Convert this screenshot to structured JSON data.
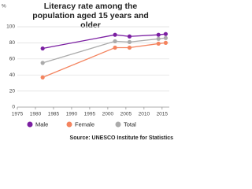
{
  "chart_data": {
    "type": "line",
    "title": "Literacy rate among the population aged 15 years and older",
    "ylabel": "%",
    "source": "Source: UNESCO Institute for Statistics",
    "x": [
      1982,
      2002,
      2006,
      2014,
      2016
    ],
    "series": [
      {
        "name": "Male",
        "color": "#7b1fa2",
        "values": [
          73,
          90,
          88,
          90,
          91
        ]
      },
      {
        "name": "Female",
        "color": "#f4845f",
        "values": [
          37,
          74,
          74,
          79,
          80
        ]
      },
      {
        "name": "Total",
        "color": "#ababab",
        "values": [
          55,
          82,
          81,
          85,
          86
        ]
      }
    ],
    "xlim": [
      1975,
      2017
    ],
    "xticks": [
      1975,
      1980,
      1985,
      1990,
      1995,
      2000,
      2005,
      2010,
      2015
    ],
    "ylim": [
      0,
      100
    ],
    "yticks": [
      0,
      20,
      40,
      60,
      80,
      100
    ],
    "grid": true
  }
}
